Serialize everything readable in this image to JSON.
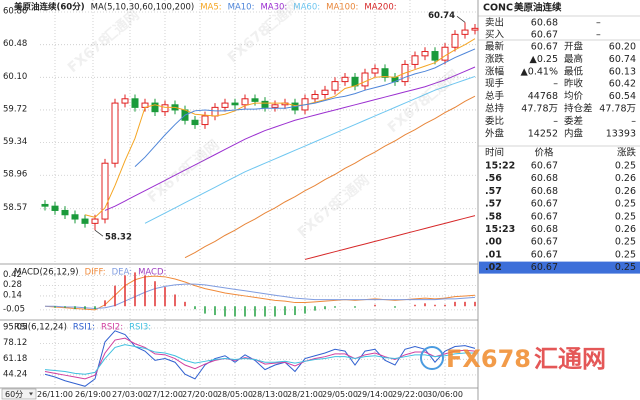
{
  "chart_data": [
    {
      "type": "candlestick",
      "title": "美原油连续(60分)",
      "indicator": "MA(5,10,30,60,100,200)",
      "categories": [
        null,
        null,
        null,
        null,
        null,
        null,
        null,
        null,
        null,
        null,
        null,
        null,
        null,
        null,
        null,
        null,
        null,
        null,
        null,
        null,
        null,
        null,
        null,
        null,
        null,
        null,
        null,
        null,
        null,
        null,
        null,
        null,
        null,
        null,
        null,
        null,
        null,
        null,
        null,
        null,
        null,
        null,
        null,
        null
      ],
      "open": [
        58.62,
        58.6,
        58.55,
        58.5,
        58.45,
        58.4,
        58.45,
        59.1,
        59.8,
        59.85,
        59.75,
        59.8,
        59.7,
        59.78,
        59.72,
        59.6,
        59.55,
        59.65,
        59.75,
        59.8,
        59.78,
        59.85,
        59.82,
        59.75,
        59.78,
        59.8,
        59.72,
        59.85,
        59.9,
        59.95,
        60.05,
        60.1,
        60.0,
        60.15,
        60.2,
        60.1,
        60.05,
        60.25,
        60.35,
        60.4,
        60.3,
        60.45,
        60.6,
        60.65
      ],
      "high": [
        58.67,
        58.65,
        58.6,
        58.55,
        58.5,
        58.5,
        59.15,
        59.85,
        59.9,
        59.9,
        59.85,
        59.85,
        59.83,
        59.83,
        59.77,
        59.65,
        59.7,
        59.8,
        59.85,
        59.85,
        59.9,
        59.9,
        59.87,
        59.83,
        59.85,
        59.85,
        59.9,
        59.95,
        60.0,
        60.1,
        60.15,
        60.15,
        60.2,
        60.25,
        60.25,
        60.15,
        60.3,
        60.4,
        60.45,
        60.45,
        60.5,
        60.65,
        60.74,
        60.72
      ],
      "low": [
        58.55,
        58.5,
        58.45,
        58.4,
        58.35,
        58.32,
        58.4,
        59.05,
        59.75,
        59.7,
        59.7,
        59.65,
        59.65,
        59.67,
        59.55,
        59.5,
        59.5,
        59.6,
        59.7,
        59.73,
        59.73,
        59.77,
        59.7,
        59.7,
        59.73,
        59.67,
        59.67,
        59.8,
        59.85,
        59.9,
        60.0,
        59.95,
        59.95,
        60.1,
        60.05,
        60.0,
        60.0,
        60.2,
        60.3,
        60.25,
        60.25,
        60.4,
        60.55,
        60.6
      ],
      "close": [
        58.6,
        58.55,
        58.5,
        58.45,
        58.4,
        58.45,
        59.1,
        59.8,
        59.85,
        59.75,
        59.8,
        59.7,
        59.78,
        59.72,
        59.6,
        59.55,
        59.65,
        59.75,
        59.8,
        59.78,
        59.85,
        59.82,
        59.75,
        59.78,
        59.8,
        59.72,
        59.85,
        59.9,
        59.95,
        60.05,
        60.1,
        60.0,
        60.15,
        60.2,
        60.1,
        60.05,
        60.25,
        60.35,
        60.4,
        60.3,
        60.45,
        60.6,
        60.65,
        60.67
      ],
      "up_color": "#e02020",
      "down_color": "#1a9a3a",
      "series": [
        {
          "name": "MA5:",
          "color": "#f5a623",
          "values": [
            null,
            null,
            null,
            null,
            58.5,
            58.47,
            58.58,
            58.84,
            59.13,
            59.39,
            59.75,
            59.78,
            59.75,
            59.75,
            59.72,
            59.67,
            59.66,
            59.65,
            59.67,
            59.71,
            59.77,
            59.8,
            59.8,
            59.8,
            59.8,
            59.77,
            59.78,
            59.81,
            59.84,
            59.88,
            59.97,
            60.0,
            60.05,
            60.1,
            60.11,
            60.1,
            60.15,
            60.19,
            60.23,
            60.27,
            60.35,
            60.42,
            60.48,
            60.55
          ]
        },
        {
          "name": "MA10:",
          "color": "#4f86d9",
          "values": [
            null,
            null,
            null,
            null,
            null,
            null,
            null,
            null,
            null,
            59.06,
            59.17,
            59.3,
            59.43,
            59.55,
            59.66,
            59.71,
            59.72,
            59.71,
            59.71,
            59.72,
            59.73,
            59.73,
            59.74,
            59.74,
            59.74,
            59.76,
            59.78,
            59.8,
            59.83,
            59.86,
            59.88,
            59.91,
            59.95,
            59.98,
            60.01,
            60.05,
            60.1,
            60.14,
            60.17,
            60.21,
            60.27,
            60.33,
            60.38,
            60.43
          ]
        },
        {
          "name": "MA30:",
          "color": "#9b30d0",
          "values": [
            null,
            null,
            null,
            null,
            null,
            null,
            58.55,
            58.6,
            58.66,
            58.72,
            58.78,
            58.84,
            58.9,
            58.96,
            59.02,
            59.08,
            59.14,
            59.2,
            59.26,
            59.32,
            59.38,
            59.43,
            59.48,
            59.52,
            59.56,
            59.6,
            59.63,
            59.66,
            59.69,
            59.72,
            59.75,
            59.78,
            59.81,
            59.84,
            59.87,
            59.9,
            59.93,
            59.96,
            59.99,
            60.03,
            60.07,
            60.12,
            60.17,
            60.22
          ]
        },
        {
          "name": "MA60:",
          "color": "#6ec6f0",
          "values": [
            null,
            null,
            null,
            null,
            null,
            null,
            null,
            null,
            null,
            null,
            58.4,
            58.46,
            58.52,
            58.58,
            58.64,
            58.7,
            58.76,
            58.82,
            58.88,
            58.94,
            59.0,
            59.05,
            59.1,
            59.15,
            59.2,
            59.25,
            59.3,
            59.35,
            59.4,
            59.45,
            59.5,
            59.55,
            59.6,
            59.65,
            59.7,
            59.75,
            59.8,
            59.85,
            59.9,
            59.95,
            59.99,
            60.03,
            60.07,
            60.11
          ]
        },
        {
          "name": "MA100:",
          "color": "#e8863a",
          "values": [
            null,
            null,
            null,
            null,
            null,
            null,
            null,
            null,
            null,
            null,
            null,
            null,
            null,
            null,
            58.0,
            58.06,
            58.13,
            58.19,
            58.26,
            58.32,
            58.39,
            58.45,
            58.52,
            58.58,
            58.65,
            58.71,
            58.78,
            58.84,
            58.91,
            58.97,
            59.04,
            59.1,
            59.17,
            59.23,
            59.3,
            59.36,
            59.43,
            59.49,
            59.56,
            59.62,
            59.69,
            59.75,
            59.82,
            59.88
          ]
        },
        {
          "name": "MA200:",
          "color": "#d62728",
          "values": [
            null,
            null,
            null,
            null,
            null,
            null,
            null,
            null,
            null,
            null,
            null,
            null,
            null,
            null,
            null,
            null,
            null,
            null,
            null,
            null,
            null,
            null,
            null,
            null,
            null,
            null,
            57.98,
            58.01,
            58.04,
            58.07,
            58.1,
            58.13,
            58.16,
            58.19,
            58.22,
            58.25,
            58.28,
            58.31,
            58.34,
            58.37,
            58.4,
            58.43,
            58.46,
            58.49
          ]
        }
      ],
      "annotations": [
        {
          "text": "60.74",
          "index": 42,
          "value": 60.74
        },
        {
          "text": "58.32",
          "index": 5,
          "value": 58.32
        }
      ],
      "ylim": [
        57.95,
        61.0
      ],
      "yticks": [
        58.57,
        58.96,
        59.34,
        59.72,
        {
          "value": 60.1,
          "label": "60.10"
        },
        60.48,
        60.86
      ],
      "xticks": [
        {
          "value": 1,
          "label": "26/11:00"
        },
        {
          "value": 4.8,
          "label": "26/19:00"
        },
        {
          "value": 8.5,
          "label": "27/03:00"
        },
        {
          "value": 12,
          "label": "27/12:00"
        },
        {
          "value": 15.5,
          "label": "27/20:00"
        },
        {
          "value": 19,
          "label": "28/05:00"
        },
        {
          "value": 22.5,
          "label": "28/13:00"
        },
        {
          "value": 26,
          "label": "28/21:00"
        },
        {
          "value": 29.5,
          "label": "29/05:00"
        },
        {
          "value": 33,
          "label": "29/14:00"
        },
        {
          "value": 36.5,
          "label": "29/22:00"
        },
        {
          "value": 40,
          "label": "30/06:00"
        }
      ],
      "grid": true
    },
    {
      "type": "macd",
      "title": "MACD(26,12,9)",
      "series": [
        {
          "name": "DIFF:",
          "color": "#f08a3a",
          "kind": "line",
          "values": [
            0.0,
            -0.01,
            -0.02,
            -0.03,
            -0.04,
            -0.05,
            0.02,
            0.15,
            0.28,
            0.36,
            0.4,
            0.41,
            0.4,
            0.37,
            0.33,
            0.28,
            0.24,
            0.21,
            0.18,
            0.16,
            0.14,
            0.12,
            0.1,
            0.08,
            0.07,
            0.05,
            0.05,
            0.06,
            0.07,
            0.08,
            0.09,
            0.08,
            0.09,
            0.1,
            0.09,
            0.08,
            0.09,
            0.1,
            0.11,
            0.1,
            0.11,
            0.13,
            0.14,
            0.15
          ]
        },
        {
          "name": "DEA:",
          "color": "#7f9ce0",
          "kind": "line",
          "values": [
            0.0,
            0.0,
            -0.01,
            -0.01,
            -0.02,
            -0.03,
            -0.02,
            0.01,
            0.07,
            0.13,
            0.19,
            0.24,
            0.27,
            0.29,
            0.3,
            0.3,
            0.29,
            0.27,
            0.25,
            0.23,
            0.21,
            0.19,
            0.17,
            0.15,
            0.13,
            0.11,
            0.1,
            0.09,
            0.09,
            0.09,
            0.09,
            0.09,
            0.09,
            0.09,
            0.09,
            0.09,
            0.09,
            0.09,
            0.09,
            0.09,
            0.1,
            0.1,
            0.11,
            0.12
          ]
        },
        {
          "name": "MACD:",
          "color": "#a040c0",
          "kind": "bar",
          "up_color": "#e03030",
          "down_color": "#20a040",
          "values": [
            0.0,
            -0.02,
            -0.02,
            -0.04,
            -0.04,
            -0.04,
            0.08,
            0.28,
            0.42,
            0.46,
            0.42,
            0.34,
            0.26,
            0.16,
            0.06,
            -0.04,
            -0.1,
            -0.12,
            -0.14,
            -0.14,
            -0.14,
            -0.14,
            -0.14,
            -0.14,
            -0.12,
            -0.12,
            -0.1,
            -0.06,
            -0.04,
            -0.02,
            0.0,
            -0.02,
            0.0,
            0.02,
            0.0,
            -0.02,
            0.0,
            0.02,
            0.04,
            0.02,
            0.02,
            0.06,
            0.06,
            0.06
          ]
        }
      ],
      "ylim": [
        -0.16,
        0.52
      ],
      "yticks": [
        -0.05,
        0.14,
        0.28,
        0.42
      ]
    },
    {
      "type": "line",
      "title": "RSI(6,12,24)",
      "series": [
        {
          "name": "RSI1:",
          "color": "#3060d0",
          "values": [
            45,
            42,
            38,
            35,
            32,
            40,
            80,
            92,
            88,
            75,
            70,
            60,
            62,
            58,
            45,
            40,
            55,
            62,
            65,
            58,
            66,
            60,
            50,
            55,
            58,
            48,
            62,
            65,
            68,
            72,
            70,
            55,
            70,
            72,
            60,
            55,
            72,
            75,
            72,
            58,
            70,
            75,
            76,
            73
          ]
        },
        {
          "name": "RSI2:",
          "color": "#d040a0",
          "values": [
            48,
            46,
            44,
            42,
            40,
            44,
            68,
            82,
            84,
            78,
            74,
            67,
            66,
            62,
            55,
            51,
            56,
            60,
            62,
            60,
            63,
            61,
            56,
            57,
            58,
            54,
            59,
            62,
            64,
            67,
            67,
            62,
            66,
            68,
            64,
            61,
            66,
            69,
            69,
            64,
            67,
            70,
            71,
            70
          ]
        },
        {
          "name": "RSI3:",
          "color": "#40c0e0",
          "values": [
            50,
            49,
            48,
            46,
            45,
            47,
            62,
            74,
            77,
            75,
            73,
            69,
            68,
            65,
            60,
            57,
            59,
            61,
            62,
            61,
            62,
            61,
            58,
            58,
            59,
            57,
            59,
            61,
            62,
            64,
            64,
            62,
            64,
            65,
            63,
            62,
            64,
            66,
            66,
            64,
            65,
            67,
            68,
            68
          ]
        }
      ],
      "ylim": [
        32.3,
        101.5
      ],
      "yticks": [
        44.24,
        61.18,
        78.12,
        95.05
      ]
    }
  ],
  "timeframe": "60分",
  "watermark": {
    "brand": "FX678",
    "name": "汇通网"
  },
  "quote": {
    "symbol": "CONC",
    "name": "美原油连续",
    "bidask": [
      {
        "label": "卖出",
        "value": "60.68",
        "extra": "–",
        "color": "#e02020"
      },
      {
        "label": "买入",
        "value": "60.67",
        "extra": "–",
        "color": "#e02020"
      }
    ],
    "stats": [
      [
        {
          "label": "最新",
          "value": "60.67",
          "color": "#e02020"
        },
        {
          "label": "开盘",
          "value": "60.20",
          "color": "#1a9a3a"
        }
      ],
      [
        {
          "label": "涨跌",
          "value": "▲0.25",
          "color": "#e02020"
        },
        {
          "label": "最高",
          "value": "60.74",
          "color": "#e02020"
        }
      ],
      [
        {
          "label": "涨幅",
          "value": "▲0.41%",
          "color": "#e02020"
        },
        {
          "label": "最低",
          "value": "60.13",
          "color": "#1a9a3a"
        }
      ],
      [
        {
          "label": "现手",
          "value": "–",
          "color": "#222222"
        },
        {
          "label": "昨收",
          "value": "60.42",
          "color": "#222222"
        }
      ],
      [
        {
          "label": "总手",
          "value": "44768",
          "color": "#222222"
        },
        {
          "label": "均价",
          "value": "60.54",
          "color": "#e02020"
        }
      ],
      [
        {
          "label": "总持",
          "value": "47.78万",
          "color": "#e02020"
        },
        {
          "label": "持仓差",
          "value": "47.78万",
          "color": "#e02020"
        }
      ],
      [
        {
          "label": "委比",
          "value": "–",
          "color": "#222222"
        },
        {
          "label": "委差",
          "value": "–",
          "color": "#222222"
        }
      ],
      [
        {
          "label": "外盘",
          "value": "14252",
          "color": "#e02020"
        },
        {
          "label": "内盘",
          "value": "13393",
          "color": "#e02020"
        }
      ]
    ]
  },
  "ticks": {
    "headers": [
      "时间",
      "价格",
      "涨跌"
    ],
    "rows": [
      [
        "15:22",
        "60.67",
        "0.25"
      ],
      [
        ".56",
        "60.68",
        "0.26"
      ],
      [
        ".57",
        "60.68",
        "0.26"
      ],
      [
        ".57",
        "60.67",
        "0.25"
      ],
      [
        ".58",
        "60.67",
        "0.25"
      ],
      [
        "15:23",
        "60.68",
        "0.26"
      ],
      [
        ".00",
        "60.67",
        "0.25"
      ],
      [
        ".01",
        "60.67",
        "0.25"
      ],
      [
        ".02",
        "60.67",
        "0.25"
      ]
    ]
  }
}
